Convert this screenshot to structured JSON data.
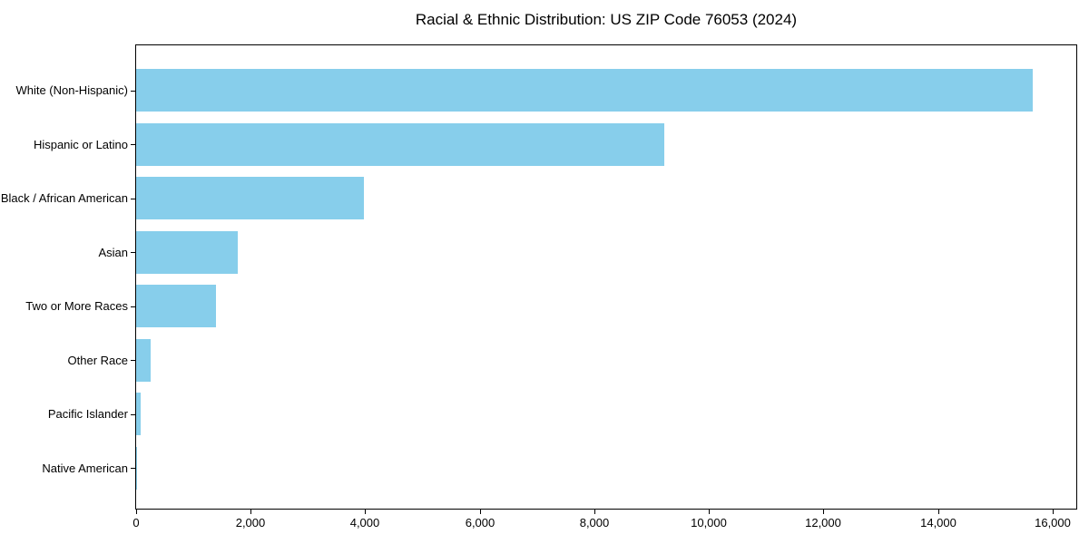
{
  "title": "Racial & Ethnic Distribution: US ZIP Code 76053 (2024)",
  "chart_data": {
    "type": "bar",
    "orientation": "horizontal",
    "title": "Racial & Ethnic Distribution: US ZIP Code 76053 (2024)",
    "xlabel": "",
    "ylabel": "",
    "categories": [
      "White (Non-Hispanic)",
      "Hispanic or Latino",
      "Black / African American",
      "Asian",
      "Two or More Races",
      "Other Race",
      "Pacific Islander",
      "Native American"
    ],
    "values": [
      15650,
      9225,
      3975,
      1770,
      1390,
      250,
      75,
      15
    ],
    "xlim": [
      0,
      16430
    ],
    "x_ticks": [
      0,
      2000,
      4000,
      6000,
      8000,
      10000,
      12000,
      14000,
      16000
    ],
    "x_tick_labels": [
      "0",
      "2,000",
      "4,000",
      "6,000",
      "8,000",
      "10,000",
      "12,000",
      "14,000",
      "16,000"
    ],
    "bar_color": "#87CEEB",
    "spine_color": "#000000",
    "background_color": "#ffffff",
    "grid": false,
    "legend": null
  }
}
